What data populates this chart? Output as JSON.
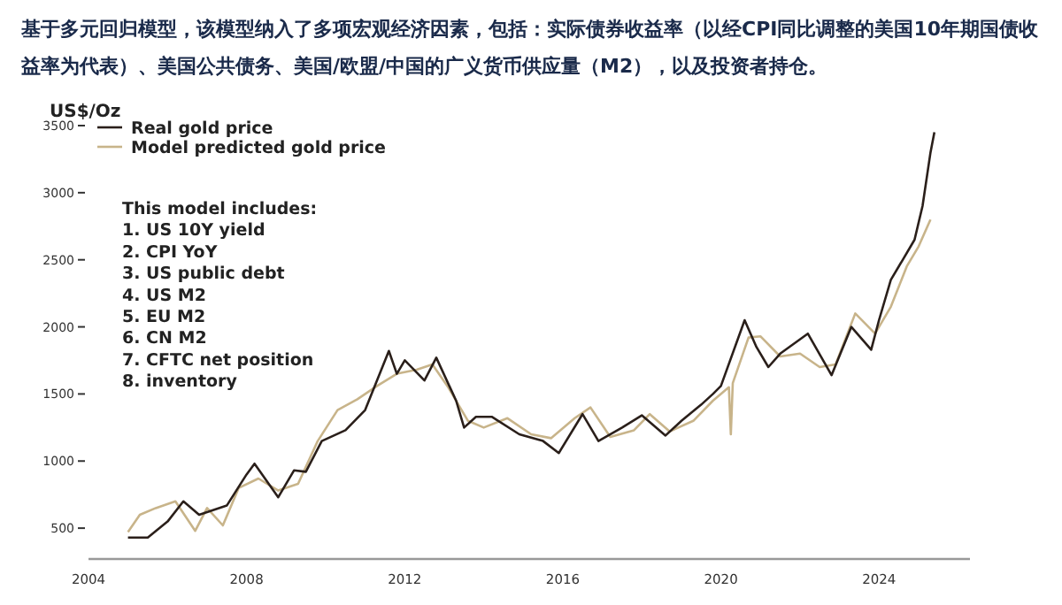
{
  "chart_data": {
    "type": "line",
    "title": "基于多元回归模型，该模型纳入了多项宏观经济因素，包括：实际债券收益率（以经CPI同比调整的美国10年期国债收益率为代表）、美国公共债务、美国/欧盟/中国的广义货币供应量（M2），以及投资者持仓。",
    "ylabel": "US$/Oz",
    "xlim": [
      2004,
      2026.3
    ],
    "xticks": [
      2004,
      2008,
      2012,
      2016,
      2020,
      2024
    ],
    "ylim": [
      270,
      3500
    ],
    "yticks": [
      500,
      1000,
      1500,
      2000,
      2500,
      3000,
      3500
    ],
    "grid": false,
    "legend": "top left",
    "marker": "none",
    "line_style": "solid",
    "annotations": [
      "This model includes:",
      "1.   US 10Y yield",
      "2.   CPI YoY",
      "3.   US public debt",
      "4.   US M2",
      "5.   EU M2",
      "6.   CN M2",
      "7.   CFTC net position",
      "8.   inventory"
    ],
    "series": [
      {
        "name": "Real gold price",
        "color": "#2a1f1a",
        "x": [
          2005.0,
          2005.5,
          2006.0,
          2006.4,
          2006.8,
          2007.5,
          2008.0,
          2008.2,
          2008.8,
          2009.2,
          2009.5,
          2009.9,
          2010.5,
          2011.0,
          2011.6,
          2011.8,
          2012.0,
          2012.5,
          2012.8,
          2013.3,
          2013.5,
          2013.8,
          2014.2,
          2014.9,
          2015.5,
          2015.9,
          2016.5,
          2016.9,
          2017.5,
          2018.0,
          2018.6,
          2019.0,
          2019.5,
          2019.8,
          2020.0,
          2020.6,
          2020.9,
          2021.2,
          2021.5,
          2022.2,
          2022.8,
          2023.3,
          2023.8,
          2024.0,
          2024.3,
          2024.6,
          2024.9,
          2025.1,
          2025.3,
          2025.4
        ],
        "values": [
          430,
          430,
          550,
          700,
          600,
          670,
          900,
          980,
          730,
          930,
          920,
          1150,
          1230,
          1380,
          1820,
          1650,
          1750,
          1600,
          1770,
          1450,
          1250,
          1330,
          1330,
          1200,
          1150,
          1060,
          1350,
          1150,
          1250,
          1340,
          1190,
          1300,
          1420,
          1500,
          1560,
          2050,
          1850,
          1700,
          1800,
          1950,
          1640,
          2000,
          1830,
          2050,
          2350,
          2500,
          2650,
          2900,
          3300,
          3450
        ]
      },
      {
        "name": "Model predicted gold price",
        "color": "#c8b48a",
        "x": [
          2005.0,
          2005.3,
          2005.7,
          2006.2,
          2006.7,
          2007.0,
          2007.4,
          2007.8,
          2008.3,
          2008.8,
          2009.3,
          2009.8,
          2010.3,
          2010.8,
          2011.3,
          2011.8,
          2012.3,
          2012.7,
          2013.1,
          2013.6,
          2014.0,
          2014.6,
          2015.2,
          2015.7,
          2016.3,
          2016.7,
          2017.2,
          2017.8,
          2018.2,
          2018.7,
          2019.3,
          2019.8,
          2020.2,
          2020.25,
          2020.3,
          2020.7,
          2021.0,
          2021.5,
          2022.0,
          2022.5,
          2022.9,
          2023.4,
          2023.9,
          2024.3,
          2024.7,
          2025.0,
          2025.3
        ],
        "values": [
          470,
          600,
          650,
          700,
          480,
          650,
          520,
          800,
          870,
          780,
          830,
          1150,
          1380,
          1460,
          1560,
          1650,
          1680,
          1720,
          1550,
          1300,
          1250,
          1320,
          1200,
          1170,
          1320,
          1400,
          1180,
          1230,
          1350,
          1220,
          1300,
          1450,
          1550,
          1200,
          1580,
          1920,
          1930,
          1780,
          1800,
          1700,
          1720,
          2100,
          1950,
          2150,
          2450,
          2600,
          2800
        ]
      }
    ]
  }
}
